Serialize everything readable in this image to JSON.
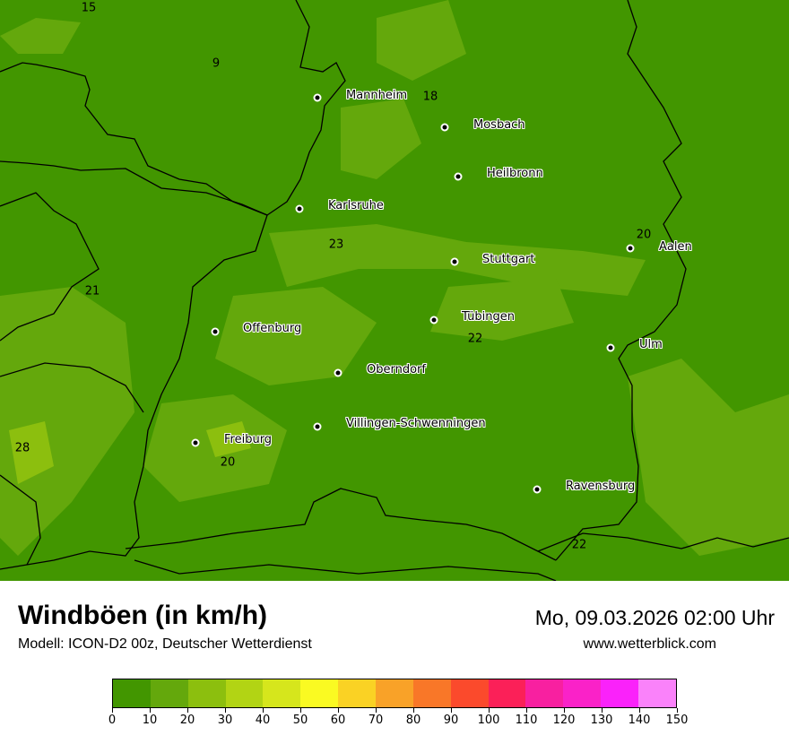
{
  "header": {
    "title": "Windböen (in km/h)",
    "subtitle": "Modell: ICON-D2 00z, Deutscher Wetterdienst",
    "datetime": "Mo, 09.03.2026 02:00 Uhr",
    "website": "www.wetterblick.com"
  },
  "cities": [
    {
      "name": "Mannheim"
    },
    {
      "name": "Mosbach"
    },
    {
      "name": "Heilbronn"
    },
    {
      "name": "Karlsruhe"
    },
    {
      "name": "Stuttgart"
    },
    {
      "name": "Aalen"
    },
    {
      "name": "Tübingen"
    },
    {
      "name": "Offenburg"
    },
    {
      "name": "Ulm"
    },
    {
      "name": "Oberndorf"
    },
    {
      "name": "Villingen-Schwenningen"
    },
    {
      "name": "Freiburg"
    },
    {
      "name": "Ravensburg"
    }
  ],
  "values": [
    "15",
    "9",
    "18",
    "23",
    "20",
    "21",
    "22",
    "28",
    "20",
    "22"
  ],
  "colorbar": {
    "ticks": [
      "0",
      "10",
      "20",
      "30",
      "40",
      "50",
      "60",
      "70",
      "80",
      "90",
      "100",
      "110",
      "120",
      "130",
      "140",
      "150"
    ],
    "colors": [
      "#429600",
      "#64a80c",
      "#8cbf0e",
      "#b2d414",
      "#d6e61c",
      "#fafa22",
      "#fad224",
      "#f9a228",
      "#f97728",
      "#fb4a2c",
      "#fb2058",
      "#f820a0",
      "#fa22c8",
      "#fa22fa",
      "#fa82fa"
    ]
  }
}
